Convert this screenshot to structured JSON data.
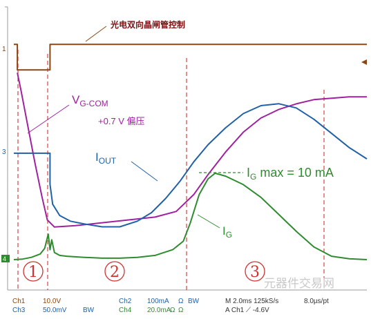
{
  "chart_data": {
    "type": "line",
    "title": "光电双向晶闸管控制",
    "x_unit": "ms",
    "x_per_div": 2.0,
    "xlim": [
      0,
      20
    ],
    "channel_markers": [
      "1",
      "3",
      "4"
    ],
    "series": [
      {
        "id": "ch1",
        "color": "#8B4513",
        "x": [
          0,
          0.2,
          0.2,
          1.0,
          2.05,
          2.05,
          20
        ],
        "y": [
          7.7,
          7.7,
          6.8,
          6.8,
          6.8,
          7.7,
          7.7
        ]
      },
      {
        "id": "vgcom",
        "name": "V",
        "sub": "G-COM",
        "color": "#A020A0",
        "x": [
          0.2,
          0.4,
          0.8,
          1.2,
          1.6,
          1.9,
          2.3,
          3.5,
          5,
          6.5,
          8,
          9.2,
          10.2,
          11,
          12,
          13,
          14,
          15,
          16,
          17,
          18,
          19,
          20
        ],
        "y": [
          6.7,
          6.1,
          4.8,
          3.5,
          2.3,
          1.5,
          1.25,
          1.3,
          1.4,
          1.5,
          1.6,
          1.8,
          2.4,
          3.1,
          3.9,
          4.6,
          5.1,
          5.4,
          5.6,
          5.75,
          5.8,
          5.85,
          5.85
        ]
      },
      {
        "id": "iout",
        "name": "I",
        "sub": "OUT",
        "color": "#2060A8",
        "x": [
          0,
          2.05,
          2.05,
          2.2,
          2.6,
          3.2,
          4,
          5,
          6,
          7,
          7.8,
          8.6,
          9.4,
          10.2,
          11,
          12,
          13,
          14,
          15,
          16,
          17,
          18,
          19,
          20
        ],
        "y": [
          4.1,
          4.1,
          3.0,
          2.3,
          1.9,
          1.7,
          1.6,
          1.5,
          1.5,
          1.7,
          2.0,
          2.5,
          3.1,
          3.8,
          4.4,
          5.0,
          5.5,
          5.78,
          5.85,
          5.7,
          5.3,
          4.8,
          4.3,
          3.9
        ]
      },
      {
        "id": "ig",
        "name": "I",
        "sub": "G",
        "color": "#2E8B2E",
        "x": [
          0,
          0.5,
          1.0,
          1.5,
          1.75,
          1.95,
          2.05,
          2.15,
          2.3,
          2.6,
          3,
          4,
          5,
          6,
          7,
          8,
          9,
          9.6,
          10,
          10.5,
          11,
          11.4,
          12,
          13,
          14,
          15,
          16,
          17,
          18,
          19,
          20
        ],
        "y": [
          0,
          0.02,
          0.08,
          0.2,
          0.4,
          0.9,
          0.35,
          0.7,
          0.25,
          0.15,
          0.12,
          0.08,
          0.05,
          0.05,
          0.08,
          0.15,
          0.35,
          0.65,
          1.3,
          2.3,
          2.85,
          3.05,
          2.95,
          2.65,
          2.2,
          1.6,
          1.0,
          0.45,
          0.12,
          0.03,
          0.0
        ]
      }
    ],
    "annotations": {
      "bias": "+0.7 V 偏压",
      "ig_max_prefix": "I",
      "ig_max_sub": "G",
      "ig_max_suffix": " max = 10 mA",
      "regions": [
        "1",
        "2",
        "3"
      ]
    },
    "status": {
      "ch1_name": "Ch1",
      "ch1_scale": "10.0V",
      "ch3_name": "Ch3",
      "ch3_scale": "50.0mV",
      "bw_a": "BW",
      "bw_b": "BW",
      "ch2_name": "Ch2",
      "ch2_scale": "100mA",
      "ohm_a": "Ω",
      "ch4_name": "Ch4",
      "ch4_scale": "20.0mA",
      "ohm_b": "Ω",
      "ohm_c": "Ω",
      "timebase": "M 2.0ms 125kS/s",
      "timebase2": "8.0µs/pt",
      "trigger": "A  Ch1  ⟋  -4.6V",
      "watermark": "元器件交易网"
    }
  }
}
